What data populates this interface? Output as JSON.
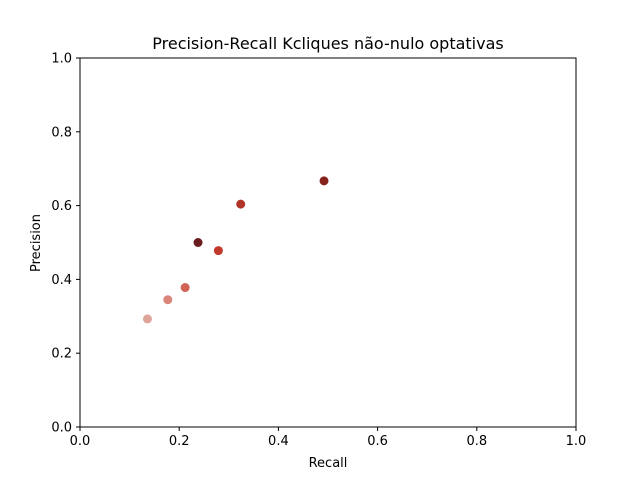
{
  "chart_data": {
    "type": "scatter",
    "title": "Precision-Recall Kcliques não-nulo optativas",
    "xlabel": "Recall",
    "ylabel": "Precision",
    "xlim": [
      0.0,
      1.0
    ],
    "ylim": [
      0.0,
      1.0
    ],
    "xticks": [
      "0.0",
      "0.2",
      "0.4",
      "0.6",
      "0.8",
      "1.0"
    ],
    "yticks": [
      "0.0",
      "0.2",
      "0.4",
      "0.6",
      "0.8",
      "1.0"
    ],
    "grid": false,
    "legend": "none",
    "points": [
      {
        "x": 0.136,
        "y": 0.293,
        "color": "#dea49a"
      },
      {
        "x": 0.177,
        "y": 0.345,
        "color": "#d98579"
      },
      {
        "x": 0.212,
        "y": 0.378,
        "color": "#d16356"
      },
      {
        "x": 0.238,
        "y": 0.5,
        "color": "#6b1c1c"
      },
      {
        "x": 0.279,
        "y": 0.478,
        "color": "#c0392b"
      },
      {
        "x": 0.324,
        "y": 0.604,
        "color": "#b03428"
      },
      {
        "x": 0.492,
        "y": 0.667,
        "color": "#852219"
      }
    ]
  }
}
